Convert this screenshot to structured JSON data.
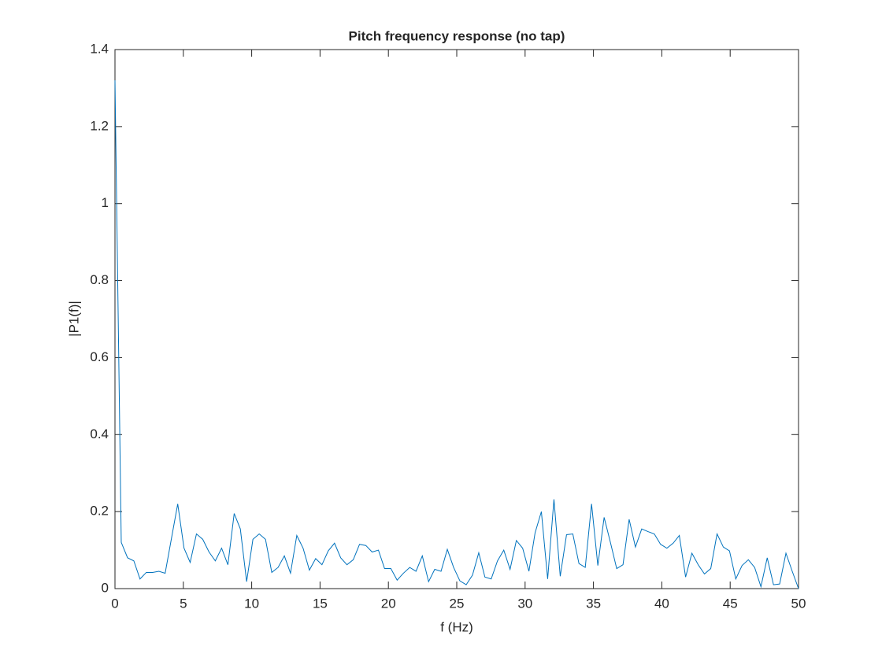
{
  "chart_data": {
    "type": "line",
    "title": "Pitch frequency response (no tap)",
    "x_label": "f (Hz)",
    "y_label": "|P1(f)|",
    "x": [
      0,
      0.46,
      0.92,
      1.38,
      1.83,
      2.29,
      2.75,
      3.21,
      3.67,
      4.13,
      4.59,
      5.05,
      5.5,
      5.96,
      6.42,
      6.88,
      7.34,
      7.8,
      8.26,
      8.72,
      9.17,
      9.63,
      10.09,
      10.55,
      11.01,
      11.47,
      11.93,
      12.39,
      12.84,
      13.3,
      13.76,
      14.22,
      14.68,
      15.14,
      15.6,
      16.06,
      16.51,
      16.97,
      17.43,
      17.89,
      18.35,
      18.81,
      19.27,
      19.72,
      20.18,
      20.64,
      21.1,
      21.56,
      22.02,
      22.48,
      22.94,
      23.39,
      23.85,
      24.31,
      24.77,
      25.23,
      25.69,
      26.15,
      26.61,
      27.06,
      27.52,
      27.98,
      28.44,
      28.9,
      29.36,
      29.82,
      30.28,
      30.73,
      31.19,
      31.65,
      32.11,
      32.57,
      33.03,
      33.49,
      33.94,
      34.4,
      34.86,
      35.32,
      35.78,
      36.24,
      36.7,
      37.16,
      37.61,
      38.07,
      38.53,
      38.99,
      39.45,
      39.91,
      40.37,
      40.83,
      41.28,
      41.74,
      42.2,
      42.66,
      43.12,
      43.58,
      44.04,
      44.5,
      44.95,
      45.41,
      45.87,
      46.33,
      46.79,
      47.25,
      47.71,
      48.17,
      48.62,
      49.08,
      49.54,
      50
    ],
    "series": [
      {
        "color": "#0072bd",
        "values": [
          1.32,
          0.12,
          0.08,
          0.072,
          0.025,
          0.042,
          0.042,
          0.045,
          0.04,
          0.13,
          0.22,
          0.105,
          0.068,
          0.142,
          0.128,
          0.095,
          0.072,
          0.105,
          0.062,
          0.195,
          0.155,
          0.018,
          0.128,
          0.142,
          0.128,
          0.042,
          0.055,
          0.085,
          0.04,
          0.138,
          0.105,
          0.048,
          0.078,
          0.062,
          0.098,
          0.118,
          0.08,
          0.062,
          0.075,
          0.115,
          0.112,
          0.095,
          0.1,
          0.052,
          0.052,
          0.022,
          0.04,
          0.055,
          0.045,
          0.085,
          0.018,
          0.05,
          0.045,
          0.102,
          0.055,
          0.02,
          0.01,
          0.035,
          0.093,
          0.03,
          0.025,
          0.072,
          0.1,
          0.05,
          0.125,
          0.105,
          0.045,
          0.145,
          0.2,
          0.025,
          0.232,
          0.032,
          0.14,
          0.142,
          0.065,
          0.055,
          0.22,
          0.06,
          0.185,
          0.12,
          0.052,
          0.062,
          0.18,
          0.108,
          0.155,
          0.148,
          0.142,
          0.115,
          0.105,
          0.118,
          0.138,
          0.03,
          0.092,
          0.062,
          0.038,
          0.052,
          0.142,
          0.108,
          0.098,
          0.025,
          0.06,
          0.075,
          0.055,
          0.005,
          0.08,
          0.01,
          0.012,
          0.092,
          0.045,
          0
        ]
      }
    ],
    "xlim": [
      0,
      50
    ],
    "xticks": [
      0,
      5,
      10,
      15,
      20,
      25,
      30,
      35,
      40,
      45,
      50
    ],
    "ylim": [
      0,
      1.4
    ],
    "yticks": [
      0,
      0.2,
      0.4,
      0.6,
      0.8,
      1,
      1.2,
      1.4
    ]
  }
}
